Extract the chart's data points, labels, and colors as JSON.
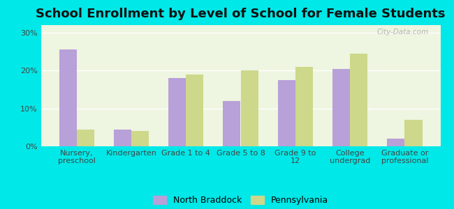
{
  "title": "School Enrollment by Level of School for Female Students",
  "categories": [
    "Nursery,\npreschool",
    "Kindergarten",
    "Grade 1 to 4",
    "Grade 5 to 8",
    "Grade 9 to\n12",
    "College\nundergrad",
    "Graduate or\nprofessional"
  ],
  "north_braddock": [
    25.5,
    4.5,
    18.0,
    12.0,
    17.5,
    20.5,
    2.0
  ],
  "pennsylvania": [
    4.5,
    4.0,
    19.0,
    20.0,
    21.0,
    24.5,
    7.0
  ],
  "bar_color_nb": "#b8a0d8",
  "bar_color_pa": "#cdd88a",
  "background_outer": "#00e8e8",
  "background_inner": "#eef5e0",
  "grid_color": "#ffffff",
  "yticks": [
    0,
    10,
    20,
    30
  ],
  "ylim": [
    0,
    32
  ],
  "legend_nb": "North Braddock",
  "legend_pa": "Pennsylvania",
  "title_fontsize": 13,
  "tick_fontsize": 8,
  "legend_fontsize": 9
}
